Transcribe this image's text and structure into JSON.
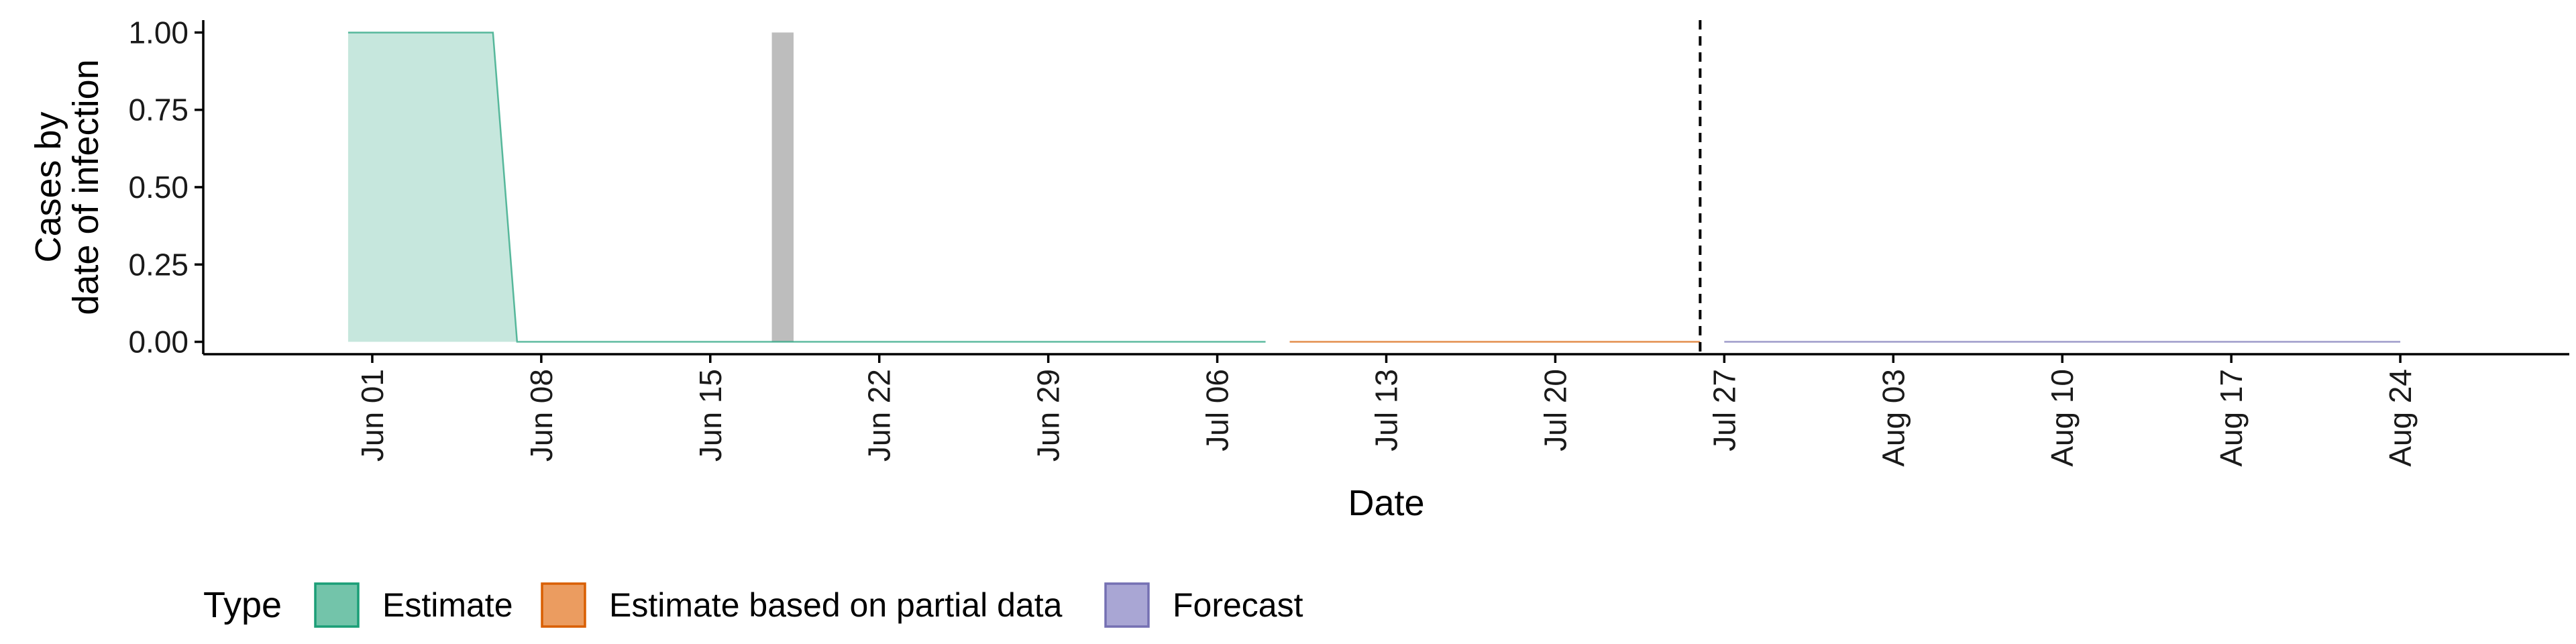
{
  "chart_data": {
    "type": "area",
    "xlabel": "Date",
    "ylabel_lines": [
      "Cases by",
      "date of infection"
    ],
    "xlim": [
      "2020-05-25",
      "2020-08-31"
    ],
    "ylim": [
      -0.04,
      1.04
    ],
    "y_ticks": [
      0.0,
      0.25,
      0.5,
      0.75,
      1.0
    ],
    "y_tick_labels": [
      "0.00",
      "0.25",
      "0.50",
      "0.75",
      "1.00"
    ],
    "x_ticks": [
      "2020-06-01",
      "2020-06-08",
      "2020-06-15",
      "2020-06-22",
      "2020-06-29",
      "2020-07-06",
      "2020-07-13",
      "2020-07-20",
      "2020-07-27",
      "2020-08-03",
      "2020-08-10",
      "2020-08-17",
      "2020-08-24"
    ],
    "x_tick_labels": [
      "Jun 01",
      "Jun 08",
      "Jun 15",
      "Jun 22",
      "Jun 29",
      "Jul 06",
      "Jul 13",
      "Jul 20",
      "Jul 27",
      "Aug 03",
      "Aug 10",
      "Aug 17",
      "Aug 24"
    ],
    "series": [
      {
        "name": "Estimate",
        "color": "#1b9e77",
        "points": [
          {
            "x": "2020-05-31",
            "y": 1.0
          },
          {
            "x": "2020-06-06",
            "y": 1.0
          },
          {
            "x": "2020-06-07",
            "y": 0.0
          },
          {
            "x": "2020-07-08",
            "y": 0.0
          }
        ]
      },
      {
        "name": "Estimate based on partial data",
        "color": "#d95f02",
        "points": [
          {
            "x": "2020-07-09",
            "y": 0.0
          },
          {
            "x": "2020-07-26",
            "y": 0.0
          }
        ]
      },
      {
        "name": "Forecast",
        "color": "#7570b3",
        "points": [
          {
            "x": "2020-07-27",
            "y": 0.0
          },
          {
            "x": "2020-08-24",
            "y": 0.0
          }
        ]
      }
    ],
    "bars": [
      {
        "x": "2020-06-18",
        "y": 1.0,
        "color": "#bdbdbd"
      }
    ],
    "reference_line": {
      "x": "2020-07-26",
      "style": "dashed"
    },
    "legend": {
      "title": "Type",
      "position": "bottom",
      "items": [
        {
          "label": "Estimate",
          "fill": "#73c4aa",
          "stroke": "#1b9e77"
        },
        {
          "label": "Estimate based on partial data",
          "fill": "#eb9c60",
          "stroke": "#d95f02"
        },
        {
          "label": "Forecast",
          "fill": "#a9a6d4",
          "stroke": "#7570b3"
        }
      ]
    }
  }
}
